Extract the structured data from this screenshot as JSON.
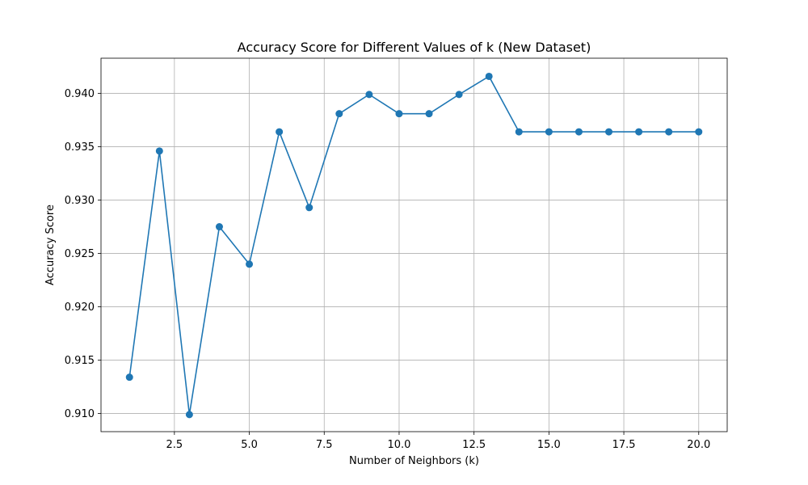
{
  "chart_data": {
    "type": "line",
    "title": "Accuracy Score for Different Values of k (New Dataset)",
    "xlabel": "Number of Neighbors (k)",
    "ylabel": "Accuracy Score",
    "x": [
      1,
      2,
      3,
      4,
      5,
      6,
      7,
      8,
      9,
      10,
      11,
      12,
      13,
      14,
      15,
      16,
      17,
      18,
      19,
      20
    ],
    "series": [
      {
        "values": [
          0.9134,
          0.9346,
          0.9099,
          0.9275,
          0.924,
          0.9364,
          0.9293,
          0.9381,
          0.9399,
          0.9381,
          0.9381,
          0.9399,
          0.9416,
          0.9364,
          0.9364,
          0.9364,
          0.9364,
          0.9364,
          0.9364,
          0.9364
        ],
        "color": "#1f77b4",
        "marker": "circle"
      }
    ],
    "xticks": [
      2.5,
      5.0,
      7.5,
      10.0,
      12.5,
      15.0,
      17.5,
      20.0
    ],
    "xtick_labels": [
      "2.5",
      "5.0",
      "7.5",
      "10.0",
      "12.5",
      "15.0",
      "17.5",
      "20.0"
    ],
    "yticks": [
      0.91,
      0.915,
      0.92,
      0.925,
      0.93,
      0.935,
      0.94
    ],
    "ytick_labels": [
      "0.910",
      "0.915",
      "0.920",
      "0.925",
      "0.930",
      "0.935",
      "0.940"
    ],
    "xlim": [
      0.05,
      20.95
    ],
    "ylim": [
      0.9083,
      0.9433
    ],
    "grid": true,
    "colors": {
      "line": "#1f77b4",
      "grid": "#b0b0b0",
      "axes": "#000000"
    }
  }
}
